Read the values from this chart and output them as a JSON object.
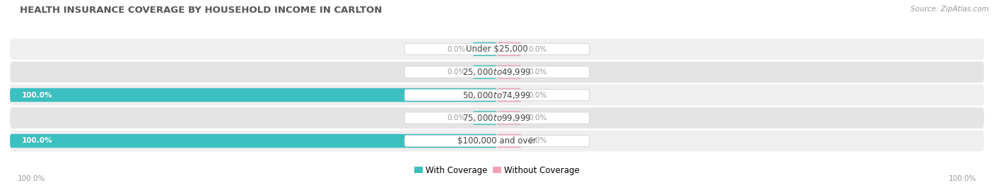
{
  "title": "HEALTH INSURANCE COVERAGE BY HOUSEHOLD INCOME IN CARLTON",
  "source": "Source: ZipAtlas.com",
  "categories": [
    "Under $25,000",
    "$25,000 to $49,999",
    "$50,000 to $74,999",
    "$75,000 to $99,999",
    "$100,000 and over"
  ],
  "with_coverage": [
    0.0,
    0.0,
    100.0,
    0.0,
    100.0
  ],
  "without_coverage": [
    0.0,
    0.0,
    0.0,
    0.0,
    0.0
  ],
  "coverage_color": "#3bbfbf",
  "no_coverage_color": "#f4a0b5",
  "row_bg_even": "#efefef",
  "row_bg_odd": "#e4e4e4",
  "pill_color": "#ffffff",
  "pill_edge_color": "#cccccc",
  "label_color_on_bar": "#ffffff",
  "label_color_off_bar": "#999999",
  "title_color": "#555555",
  "source_color": "#999999",
  "title_fontsize": 9.5,
  "source_fontsize": 7.5,
  "label_fontsize": 7.5,
  "category_fontsize": 8.5,
  "legend_fontsize": 8.5,
  "xlim_left": -100,
  "xlim_right": 100,
  "background_color": "#ffffff",
  "stub_size": 5.0
}
